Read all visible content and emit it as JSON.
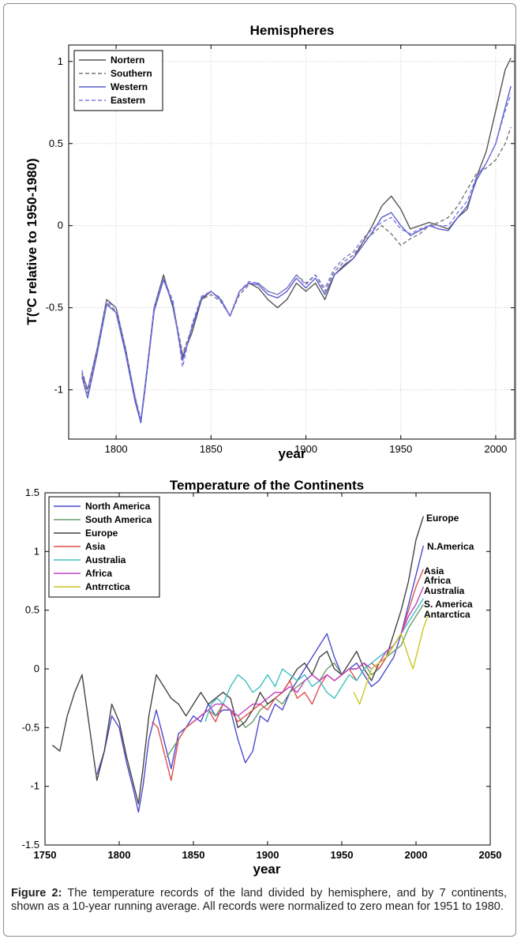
{
  "chart_data": [
    {
      "type": "line",
      "title": "Hemispheres",
      "xlabel": "year",
      "ylabel": "T(ºC relative to 1950-1980)",
      "xlim": [
        1775,
        2010
      ],
      "ylim": [
        -1.3,
        1.1
      ],
      "xticks": [
        "1800",
        "1850",
        "1900",
        "1950",
        "2000"
      ],
      "yticks": [
        "1",
        "0.5",
        "0",
        "-0.5",
        "-1"
      ],
      "grid": true,
      "legend_position": "top-left",
      "series": [
        {
          "name": "Nortern",
          "color": "#555555",
          "dash": "solid",
          "x": [
            1782,
            1785,
            1790,
            1795,
            1800,
            1805,
            1810,
            1813,
            1815,
            1818,
            1820,
            1825,
            1830,
            1835,
            1840,
            1845,
            1850,
            1855,
            1860,
            1865,
            1870,
            1875,
            1880,
            1885,
            1890,
            1895,
            1900,
            1905,
            1910,
            1915,
            1920,
            1925,
            1930,
            1935,
            1940,
            1945,
            1950,
            1955,
            1960,
            1965,
            1970,
            1975,
            1980,
            1985,
            1990,
            1995,
            2000,
            2005,
            2008
          ],
          "y": [
            -0.9,
            -1.0,
            -0.75,
            -0.45,
            -0.5,
            -0.75,
            -1.05,
            -1.2,
            -1.0,
            -0.7,
            -0.5,
            -0.3,
            -0.5,
            -0.8,
            -0.65,
            -0.45,
            -0.4,
            -0.45,
            -0.55,
            -0.4,
            -0.35,
            -0.38,
            -0.45,
            -0.5,
            -0.45,
            -0.35,
            -0.4,
            -0.35,
            -0.45,
            -0.3,
            -0.25,
            -0.2,
            -0.1,
            0.0,
            0.12,
            0.18,
            0.1,
            -0.02,
            0.0,
            0.02,
            0.0,
            -0.02,
            0.05,
            0.1,
            0.3,
            0.45,
            0.7,
            0.95,
            1.02
          ]
        },
        {
          "name": "Southern",
          "color": "#777777",
          "dash": "dashed",
          "x": [
            1782,
            1785,
            1790,
            1795,
            1800,
            1805,
            1810,
            1813,
            1815,
            1818,
            1820,
            1825,
            1830,
            1835,
            1840,
            1845,
            1850,
            1855,
            1860,
            1865,
            1870,
            1875,
            1880,
            1885,
            1890,
            1895,
            1900,
            1905,
            1910,
            1915,
            1920,
            1925,
            1930,
            1935,
            1940,
            1945,
            1950,
            1955,
            1960,
            1965,
            1970,
            1975,
            1980,
            1985,
            1990,
            1995,
            2000,
            2005,
            2008
          ],
          "y": [
            -0.9,
            -1.02,
            -0.77,
            -0.47,
            -0.52,
            -0.77,
            -1.05,
            -1.18,
            -1.0,
            -0.72,
            -0.52,
            -0.32,
            -0.48,
            -0.78,
            -0.62,
            -0.45,
            -0.42,
            -0.46,
            -0.55,
            -0.42,
            -0.36,
            -0.35,
            -0.4,
            -0.42,
            -0.38,
            -0.3,
            -0.35,
            -0.3,
            -0.4,
            -0.28,
            -0.22,
            -0.18,
            -0.1,
            -0.05,
            0.0,
            -0.05,
            -0.12,
            -0.08,
            -0.05,
            0.0,
            0.02,
            0.05,
            0.12,
            0.22,
            0.32,
            0.35,
            0.4,
            0.5,
            0.6
          ]
        },
        {
          "name": "Western",
          "color": "#5a5ad0",
          "dash": "solid",
          "x": [
            1782,
            1785,
            1790,
            1795,
            1800,
            1805,
            1810,
            1813,
            1815,
            1818,
            1820,
            1825,
            1830,
            1835,
            1840,
            1845,
            1850,
            1855,
            1860,
            1865,
            1870,
            1875,
            1880,
            1885,
            1890,
            1895,
            1900,
            1905,
            1910,
            1915,
            1920,
            1925,
            1930,
            1935,
            1940,
            1945,
            1950,
            1955,
            1960,
            1965,
            1970,
            1975,
            1980,
            1985,
            1990,
            1995,
            2000,
            2005,
            2008
          ],
          "y": [
            -0.92,
            -1.05,
            -0.78,
            -0.48,
            -0.53,
            -0.78,
            -1.07,
            -1.2,
            -1.02,
            -0.72,
            -0.52,
            -0.33,
            -0.48,
            -0.82,
            -0.62,
            -0.44,
            -0.4,
            -0.45,
            -0.55,
            -0.4,
            -0.35,
            -0.36,
            -0.42,
            -0.44,
            -0.4,
            -0.32,
            -0.38,
            -0.32,
            -0.42,
            -0.3,
            -0.24,
            -0.2,
            -0.12,
            -0.04,
            0.05,
            0.08,
            0.0,
            -0.06,
            -0.03,
            0.0,
            -0.02,
            -0.03,
            0.05,
            0.12,
            0.28,
            0.38,
            0.5,
            0.72,
            0.85
          ]
        },
        {
          "name": "Eastern",
          "color": "#7a7ae6",
          "dash": "dashed",
          "x": [
            1782,
            1785,
            1790,
            1795,
            1800,
            1805,
            1810,
            1813,
            1815,
            1818,
            1820,
            1825,
            1830,
            1835,
            1840,
            1845,
            1850,
            1855,
            1860,
            1865,
            1870,
            1875,
            1880,
            1885,
            1890,
            1895,
            1900,
            1905,
            1910,
            1915,
            1920,
            1925,
            1930,
            1935,
            1940,
            1945,
            1950,
            1955,
            1960,
            1965,
            1970,
            1975,
            1980,
            1985,
            1990,
            1995,
            2000,
            2005,
            2008
          ],
          "y": [
            -0.88,
            -1.0,
            -0.76,
            -0.46,
            -0.5,
            -0.76,
            -1.04,
            -1.18,
            -1.0,
            -0.7,
            -0.5,
            -0.32,
            -0.46,
            -0.86,
            -0.6,
            -0.43,
            -0.4,
            -0.44,
            -0.55,
            -0.4,
            -0.34,
            -0.35,
            -0.4,
            -0.42,
            -0.38,
            -0.3,
            -0.36,
            -0.3,
            -0.38,
            -0.26,
            -0.2,
            -0.16,
            -0.08,
            -0.02,
            0.02,
            0.05,
            -0.02,
            -0.05,
            -0.02,
            0.0,
            0.0,
            0.0,
            0.08,
            0.15,
            0.3,
            0.38,
            0.5,
            0.7,
            0.8
          ]
        }
      ]
    },
    {
      "type": "line",
      "title": "Temperature of the Continents",
      "xlabel": "year",
      "ylabel": "",
      "xlim": [
        1750,
        2050
      ],
      "ylim": [
        -1.5,
        1.5
      ],
      "xticks": [
        "1750",
        "1800",
        "1850",
        "1900",
        "1950",
        "2000",
        "2050"
      ],
      "yticks": [
        "1.5",
        "1",
        "0.5",
        "0",
        "-0.5",
        "-1",
        "-1.5"
      ],
      "grid": false,
      "legend_position": "top-left",
      "series": [
        {
          "name": "North America",
          "color": "#4a4ad0",
          "x": [
            1785,
            1790,
            1795,
            1800,
            1805,
            1810,
            1813,
            1816,
            1820,
            1825,
            1830,
            1835,
            1840,
            1845,
            1850,
            1855,
            1860,
            1865,
            1870,
            1875,
            1880,
            1885,
            1890,
            1895,
            1900,
            1905,
            1910,
            1915,
            1920,
            1925,
            1930,
            1935,
            1940,
            1945,
            1950,
            1955,
            1960,
            1965,
            1970,
            1975,
            1980,
            1985,
            1990,
            1995,
            2000,
            2005
          ],
          "y": [
            -0.9,
            -0.7,
            -0.4,
            -0.5,
            -0.8,
            -1.05,
            -1.22,
            -1.0,
            -0.6,
            -0.35,
            -0.6,
            -0.85,
            -0.55,
            -0.5,
            -0.4,
            -0.45,
            -0.3,
            -0.4,
            -0.35,
            -0.35,
            -0.6,
            -0.8,
            -0.7,
            -0.4,
            -0.45,
            -0.3,
            -0.35,
            -0.2,
            -0.1,
            0.0,
            0.1,
            0.2,
            0.3,
            0.1,
            -0.05,
            0.0,
            0.05,
            -0.05,
            -0.15,
            -0.1,
            0.0,
            0.1,
            0.3,
            0.55,
            0.8,
            1.05
          ]
        },
        {
          "name": "South America",
          "color": "#6c9c6c",
          "x": [
            1832,
            1840,
            1845,
            1850,
            1855,
            1860,
            1865,
            1870,
            1875,
            1880,
            1885,
            1890,
            1895,
            1900,
            1905,
            1910,
            1915,
            1920,
            1925,
            1930,
            1935,
            1940,
            1945,
            1950,
            1955,
            1960,
            1965,
            1970,
            1975,
            1980,
            1985,
            1990,
            1995,
            2000,
            2005
          ],
          "y": [
            -0.75,
            -0.6,
            -0.5,
            -0.45,
            -0.4,
            -0.35,
            -0.4,
            -0.3,
            -0.35,
            -0.4,
            -0.5,
            -0.45,
            -0.35,
            -0.3,
            -0.25,
            -0.3,
            -0.2,
            -0.15,
            -0.1,
            -0.05,
            -0.1,
            0.0,
            0.05,
            -0.05,
            0.0,
            0.0,
            0.05,
            -0.05,
            0.0,
            0.1,
            0.15,
            0.2,
            0.35,
            0.45,
            0.55
          ]
        },
        {
          "name": "Europe",
          "color": "#444444",
          "x": [
            1755,
            1760,
            1765,
            1770,
            1775,
            1780,
            1785,
            1790,
            1795,
            1800,
            1805,
            1810,
            1813,
            1816,
            1820,
            1825,
            1830,
            1835,
            1840,
            1845,
            1850,
            1855,
            1860,
            1865,
            1870,
            1875,
            1880,
            1885,
            1890,
            1895,
            1900,
            1905,
            1910,
            1915,
            1920,
            1925,
            1930,
            1935,
            1940,
            1945,
            1950,
            1955,
            1960,
            1965,
            1970,
            1975,
            1980,
            1985,
            1990,
            1995,
            2000,
            2005
          ],
          "y": [
            -0.65,
            -0.7,
            -0.4,
            -0.2,
            -0.05,
            -0.5,
            -0.95,
            -0.7,
            -0.3,
            -0.45,
            -0.75,
            -1.0,
            -1.15,
            -0.85,
            -0.4,
            -0.05,
            -0.15,
            -0.25,
            -0.3,
            -0.4,
            -0.3,
            -0.2,
            -0.3,
            -0.25,
            -0.2,
            -0.25,
            -0.5,
            -0.45,
            -0.35,
            -0.2,
            -0.3,
            -0.25,
            -0.2,
            -0.1,
            0.0,
            0.05,
            -0.05,
            0.1,
            0.15,
            0.0,
            -0.05,
            0.05,
            0.15,
            0.0,
            -0.1,
            0.05,
            0.1,
            0.3,
            0.5,
            0.75,
            1.1,
            1.3
          ]
        },
        {
          "name": "Asia",
          "color": "#e05050",
          "x": [
            1822,
            1826,
            1830,
            1835,
            1840,
            1845,
            1850,
            1855,
            1860,
            1865,
            1870,
            1875,
            1880,
            1885,
            1890,
            1895,
            1900,
            1905,
            1910,
            1915,
            1920,
            1925,
            1930,
            1935,
            1940,
            1945,
            1950,
            1955,
            1960,
            1965,
            1970,
            1975,
            1980,
            1985,
            1990,
            1995,
            2000,
            2005
          ],
          "y": [
            -0.45,
            -0.5,
            -0.7,
            -0.95,
            -0.6,
            -0.5,
            -0.45,
            -0.4,
            -0.35,
            -0.45,
            -0.3,
            -0.35,
            -0.45,
            -0.4,
            -0.35,
            -0.3,
            -0.35,
            -0.25,
            -0.2,
            -0.1,
            -0.25,
            -0.2,
            -0.3,
            -0.15,
            -0.05,
            -0.1,
            -0.05,
            0.0,
            -0.1,
            0.0,
            0.05,
            0.0,
            0.1,
            0.2,
            0.3,
            0.5,
            0.7,
            0.85
          ]
        },
        {
          "name": "Australia",
          "color": "#40c0c0",
          "x": [
            1858,
            1862,
            1866,
            1870,
            1875,
            1880,
            1885,
            1890,
            1895,
            1900,
            1905,
            1910,
            1915,
            1920,
            1925,
            1930,
            1935,
            1940,
            1945,
            1950,
            1955,
            1960,
            1965,
            1970,
            1975,
            1980,
            1985,
            1990,
            1995,
            2000,
            2005
          ],
          "y": [
            -0.45,
            -0.3,
            -0.25,
            -0.3,
            -0.15,
            -0.05,
            -0.1,
            -0.2,
            -0.15,
            -0.05,
            -0.15,
            0.0,
            -0.05,
            -0.1,
            -0.05,
            -0.15,
            -0.1,
            -0.2,
            -0.25,
            -0.15,
            -0.05,
            -0.1,
            0.0,
            0.05,
            0.1,
            0.15,
            0.2,
            0.3,
            0.4,
            0.5,
            0.6
          ]
        },
        {
          "name": "Africa",
          "color": "#c040c0",
          "x": [
            1850,
            1855,
            1860,
            1865,
            1870,
            1875,
            1880,
            1885,
            1890,
            1895,
            1900,
            1905,
            1910,
            1915,
            1920,
            1925,
            1930,
            1935,
            1940,
            1945,
            1950,
            1955,
            1960,
            1965,
            1970,
            1975,
            1980,
            1985,
            1990,
            1995,
            2000,
            2005
          ],
          "y": [
            -0.45,
            -0.4,
            -0.35,
            -0.3,
            -0.3,
            -0.35,
            -0.4,
            -0.35,
            -0.3,
            -0.3,
            -0.25,
            -0.2,
            -0.2,
            -0.15,
            -0.2,
            -0.1,
            -0.05,
            -0.1,
            -0.05,
            -0.1,
            -0.05,
            0.0,
            0.0,
            0.05,
            0.0,
            0.05,
            0.15,
            0.2,
            0.3,
            0.45,
            0.55,
            0.7
          ]
        },
        {
          "name": "Antrrctica",
          "color": "#c8c820",
          "x": [
            1958,
            1962,
            1966,
            1970,
            1975,
            1980,
            1985,
            1990,
            1995,
            1998,
            2002,
            2005,
            2008
          ],
          "y": [
            -0.2,
            -0.3,
            -0.15,
            0.0,
            0.05,
            0.1,
            0.2,
            0.3,
            0.1,
            0.0,
            0.2,
            0.35,
            0.45
          ]
        }
      ],
      "annotations": [
        "Europe",
        "N.America",
        "Asia",
        "Africa",
        "Australia",
        "S. America",
        "Antarctica"
      ]
    }
  ],
  "caption": {
    "label": "Figure 2:",
    "text": "The temperature records of the land divided by hemisphere, and by 7 continents, shown as a 10-year running average. All records were normalized to zero mean for 1951 to 1980."
  }
}
